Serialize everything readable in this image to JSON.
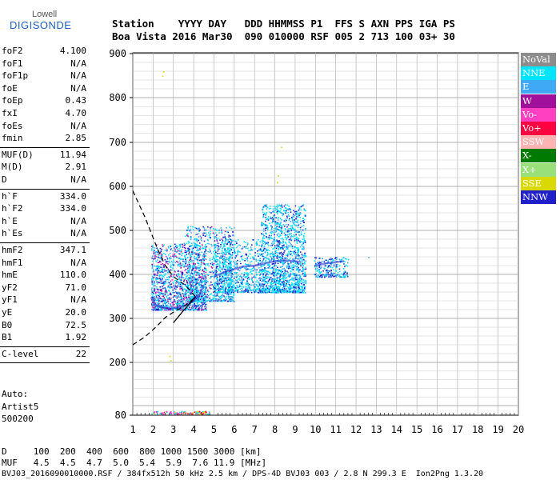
{
  "logo": {
    "line1": "Lowell",
    "line2": "DIGISONDE"
  },
  "header": {
    "row1": "Station    YYYY DAY   DDD HHMMSS P1  FFS S AXN PPS IGA PS",
    "row2": "Boa Vista 2016 Mar30  090 010000 RSF 005 2 713 100 03+ 30"
  },
  "params_group1": [
    {
      "name": "foF2",
      "value": "4.100"
    },
    {
      "name": "foF1",
      "value": "N/A"
    },
    {
      "name": "foF1p",
      "value": "N/A"
    },
    {
      "name": "foE",
      "value": "N/A"
    },
    {
      "name": "foEp",
      "value": "0.43"
    },
    {
      "name": "fxI",
      "value": "4.70"
    },
    {
      "name": "foEs",
      "value": "N/A"
    },
    {
      "name": "fmin",
      "value": "2.85"
    }
  ],
  "params_group2": [
    {
      "name": "MUF(D)",
      "value": "11.94"
    },
    {
      "name": "M(D)",
      "value": "2.91"
    },
    {
      "name": "D",
      "value": "N/A"
    }
  ],
  "params_group3": [
    {
      "name": "h`F",
      "value": "334.0"
    },
    {
      "name": "h`F2",
      "value": "334.0"
    },
    {
      "name": "h`E",
      "value": "N/A"
    },
    {
      "name": "h`Es",
      "value": "N/A"
    }
  ],
  "params_group4": [
    {
      "name": "hmF2",
      "value": "347.1"
    },
    {
      "name": "hmF1",
      "value": "N/A"
    },
    {
      "name": "hmE",
      "value": "110.0"
    },
    {
      "name": "yF2",
      "value": "71.0"
    },
    {
      "name": "yF1",
      "value": "N/A"
    },
    {
      "name": "yE",
      "value": "20.0"
    },
    {
      "name": "B0",
      "value": "72.5"
    },
    {
      "name": "B1",
      "value": "1.92"
    }
  ],
  "params_group5": [
    {
      "name": "C-level",
      "value": "22"
    }
  ],
  "autoscaling": {
    "line1": "Auto:",
    "line2": "Artist5",
    "line3": "500200"
  },
  "legend": [
    {
      "label": "NoVal",
      "color": "#8c8c8c"
    },
    {
      "label": "NNE",
      "color": "#00e5ff"
    },
    {
      "label": "E",
      "color": "#3fa9f5"
    },
    {
      "label": "W",
      "color": "#a0109a"
    },
    {
      "label": "Vo-",
      "color": "#ff40c0"
    },
    {
      "label": "Vo+",
      "color": "#ff0040"
    },
    {
      "label": "SSW",
      "color": "#ffb3b3"
    },
    {
      "label": "X-",
      "color": "#007a00"
    },
    {
      "label": "X+",
      "color": "#99e07a"
    },
    {
      "label": "SSE",
      "color": "#d9d900"
    },
    {
      "label": "NNW",
      "color": "#2020c8"
    }
  ],
  "footer": {
    "line1": "D     100  200  400  600  800 1000 1500 3000 [km]",
    "line2": "MUF   4.5  4.5  4.7  5.0  5.4  5.9  7.6 11.9 [MHz]",
    "line3": "BVJ03_2016090010000.RSF / 384fx512h 50 kHz 2.5 km / DPS-4D BVJ03 003 / 2.8 N 299.3 E  Ion2Png 1.3.20"
  },
  "chart_data": {
    "type": "scatter",
    "xlim": [
      1,
      20
    ],
    "ylim": [
      80,
      900
    ],
    "x_ticks": [
      1,
      2,
      3,
      4,
      5,
      6,
      7,
      8,
      9,
      10,
      11,
      12,
      13,
      14,
      15,
      16,
      17,
      18,
      19,
      20
    ],
    "y_ticks": [
      80,
      100,
      200,
      300,
      400,
      500,
      600,
      700,
      800,
      900
    ],
    "y_tick_labels": [
      80,
      200,
      300,
      400,
      500,
      600,
      700,
      800,
      900
    ],
    "grid": true,
    "legend_position": "right",
    "traces": [
      {
        "x": [
          1.9,
          2.1,
          2.4,
          2.8,
          3.2,
          3.6,
          4.0,
          4.3,
          4.5
        ],
        "y": [
          348,
          330,
          326,
          322,
          325,
          330,
          340,
          355,
          375
        ]
      },
      {
        "x": [
          5.0,
          5.5,
          6.0,
          6.5,
          7.0,
          7.5,
          8.0,
          8.5,
          9.0,
          9.3
        ],
        "y": [
          395,
          405,
          412,
          418,
          420,
          425,
          430,
          432,
          430,
          428
        ]
      },
      {
        "x": [
          10.0,
          10.5,
          11.0,
          11.4
        ],
        "y": [
          420,
          425,
          428,
          430
        ]
      }
    ],
    "profile": [
      {
        "x": 1.0,
        "y": 590
      },
      {
        "x": 1.6,
        "y": 530
      },
      {
        "x": 2.2,
        "y": 460
      },
      {
        "x": 2.6,
        "y": 420
      },
      {
        "x": 3.0,
        "y": 395
      },
      {
        "x": 3.6,
        "y": 375
      },
      {
        "x": 4.1,
        "y": 349
      }
    ],
    "profile_lower": [
      {
        "x": 1.0,
        "y": 240
      },
      {
        "x": 1.6,
        "y": 258
      },
      {
        "x": 2.2,
        "y": 283
      },
      {
        "x": 2.6,
        "y": 302
      },
      {
        "x": 3.0,
        "y": 314
      },
      {
        "x": 3.6,
        "y": 330
      },
      {
        "x": 4.1,
        "y": 349
      }
    ],
    "profile_solid": [
      {
        "x": 3.0,
        "y": 290
      },
      {
        "x": 3.5,
        "y": 318
      },
      {
        "x": 4.1,
        "y": 349
      }
    ]
  }
}
